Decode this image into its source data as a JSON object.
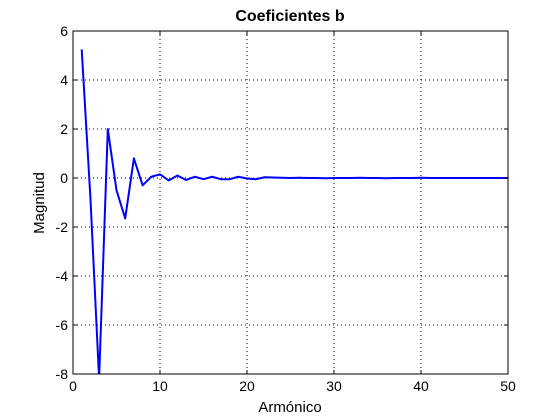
{
  "chart_data": {
    "type": "line",
    "title": "Coeficientes b",
    "xlabel": "Armónico",
    "ylabel": "Magnitud",
    "xlim": [
      0,
      50
    ],
    "ylim": [
      -8,
      6
    ],
    "xticks": [
      0,
      10,
      20,
      30,
      40,
      50
    ],
    "yticks": [
      -8,
      -6,
      -4,
      -2,
      0,
      2,
      4,
      6
    ],
    "grid": true,
    "series": [
      {
        "x": [
          1,
          2,
          3,
          4,
          5,
          6,
          7,
          8,
          9,
          10,
          11,
          12,
          13,
          14,
          15,
          16,
          17,
          18,
          19,
          20,
          21,
          22,
          23,
          24,
          25,
          26,
          27,
          28,
          29,
          30,
          31,
          32,
          33,
          34,
          35,
          36,
          37,
          38,
          39,
          40,
          41,
          42,
          43,
          44,
          45,
          46,
          47,
          48,
          49,
          50
        ],
        "values": [
          5.25,
          -0.8,
          -8.2,
          2.0,
          -0.5,
          -1.65,
          0.8,
          -0.3,
          0.05,
          0.15,
          -0.1,
          0.1,
          -0.08,
          0.05,
          -0.05,
          0.05,
          -0.05,
          -0.05,
          0.05,
          -0.02,
          -0.05,
          0.03,
          0.02,
          0.01,
          0.0,
          0.01,
          0.0,
          0.0,
          -0.01,
          0.0,
          0.0,
          0.0,
          0.01,
          0.0,
          0.0,
          -0.01,
          0.0,
          0.0,
          0.0,
          0.01,
          0.0,
          0.0,
          0.0,
          0.0,
          0.0,
          0.0,
          0.0,
          0.0,
          0.0,
          0.0
        ]
      }
    ],
    "line_color": "#0000ff"
  }
}
